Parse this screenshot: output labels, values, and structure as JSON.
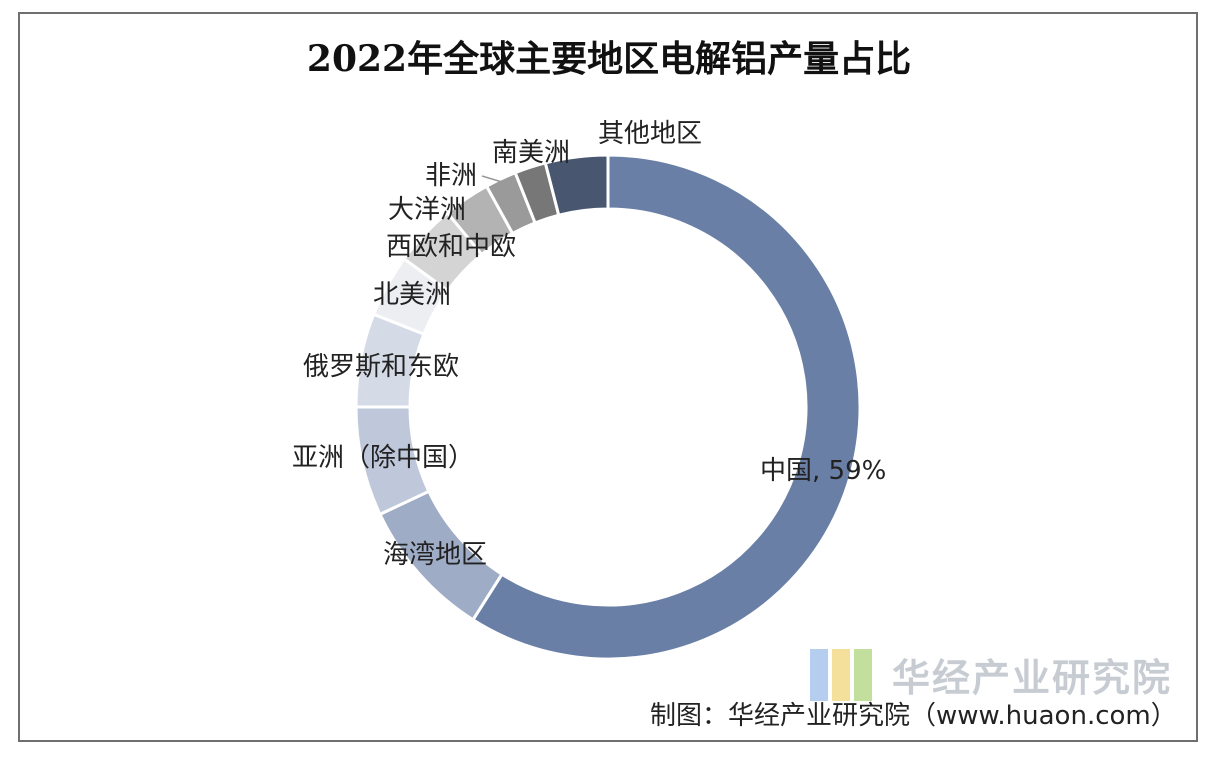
{
  "chart_data": {
    "type": "pie",
    "title": "2022年全球主要地区电解铝产量占比",
    "slices": [
      {
        "label": "中国, 59%",
        "value": 59,
        "color": "#6a7fa6"
      },
      {
        "label": "海湾地区",
        "value": 9,
        "color": "#9facc6"
      },
      {
        "label": "亚洲（除中国）",
        "value": 7,
        "color": "#bec8da"
      },
      {
        "label": "俄罗斯和东欧",
        "value": 6,
        "color": "#d5dbe6"
      },
      {
        "label": "北美洲",
        "value": 4,
        "color": "#edeef1"
      },
      {
        "label": "西欧和中欧",
        "value": 4,
        "color": "#d4d4d4"
      },
      {
        "label": "大洋洲",
        "value": 3,
        "color": "#b3b3b3"
      },
      {
        "label": "非洲",
        "value": 2,
        "color": "#9a9a9a"
      },
      {
        "label": "南美洲",
        "value": 2,
        "color": "#777777"
      },
      {
        "label": "其他地区",
        "value": 4,
        "color": "#485670"
      }
    ]
  },
  "watermark": {
    "text": "华经产业研究院",
    "logo_colors": [
      "#a8c6ec",
      "#f2d98a",
      "#b9d98c"
    ]
  },
  "source_note": "制图：华经产业研究院（www.huaon.com）"
}
